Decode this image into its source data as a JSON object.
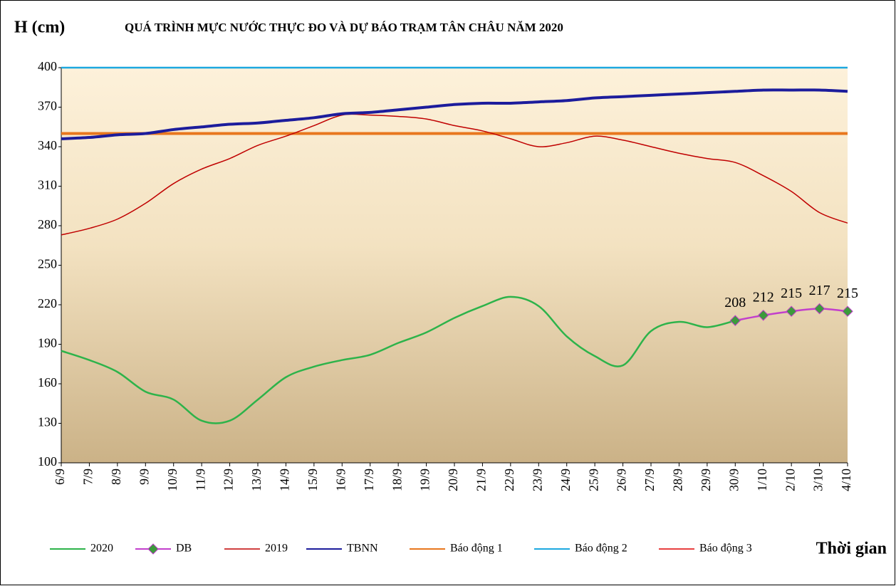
{
  "chart_data": {
    "type": "line",
    "title": "QUÁ TRÌNH MỰC NƯỚC THỰC ĐO VÀ DỰ BÁO TRẠM TÂN CHÂU NĂM 2020",
    "y_label": "H (cm)",
    "x_label": "Thời gian",
    "categories": [
      "6/9",
      "7/9",
      "8/9",
      "9/9",
      "10/9",
      "11/9",
      "12/9",
      "13/9",
      "14/9",
      "15/9",
      "16/9",
      "17/9",
      "18/9",
      "19/9",
      "20/9",
      "21/9",
      "22/9",
      "23/9",
      "24/9",
      "25/9",
      "26/9",
      "27/9",
      "28/9",
      "29/9",
      "30/9",
      "1/10",
      "2/10",
      "3/10",
      "4/10"
    ],
    "ylim": [
      100,
      400
    ],
    "yticks": [
      100,
      130,
      160,
      190,
      220,
      250,
      280,
      310,
      340,
      370,
      400
    ],
    "series": [
      {
        "name": "2020",
        "color": "#2db34a",
        "width": 2.5,
        "values": [
          185,
          178,
          169,
          154,
          148,
          132,
          132,
          148,
          165,
          173,
          178,
          182,
          191,
          199,
          210,
          219,
          226,
          219,
          196,
          181,
          174,
          200,
          207,
          203,
          208,
          null,
          null,
          null,
          null
        ]
      },
      {
        "name": "DB",
        "color": "#c23fcc",
        "marker_color": "#3c9a3c",
        "width": 2.5,
        "markers": true,
        "data_labels": true,
        "values": [
          null,
          null,
          null,
          null,
          null,
          null,
          null,
          null,
          null,
          null,
          null,
          null,
          null,
          null,
          null,
          null,
          null,
          null,
          null,
          null,
          null,
          null,
          null,
          null,
          208,
          212,
          215,
          217,
          215
        ]
      },
      {
        "name": "2019",
        "color": "#c00000",
        "width": 1.5,
        "values": [
          273,
          278,
          285,
          297,
          312,
          323,
          331,
          341,
          348,
          356,
          364,
          364,
          363,
          361,
          356,
          352,
          346,
          340,
          343,
          348,
          345,
          340,
          335,
          331,
          328,
          318,
          306,
          290,
          282
        ]
      },
      {
        "name": "TBNN",
        "color": "#1c1c9c",
        "width": 4,
        "values": [
          346,
          347,
          349,
          350,
          353,
          355,
          357,
          358,
          360,
          362,
          365,
          366,
          368,
          370,
          372,
          373,
          373,
          374,
          375,
          377,
          378,
          379,
          380,
          381,
          382,
          383,
          383,
          383,
          382
        ]
      },
      {
        "name": "Báo động 1",
        "color": "#e8771e",
        "width": 4,
        "values": [
          350,
          350,
          350,
          350,
          350,
          350,
          350,
          350,
          350,
          350,
          350,
          350,
          350,
          350,
          350,
          350,
          350,
          350,
          350,
          350,
          350,
          350,
          350,
          350,
          350,
          350,
          350,
          350,
          350
        ]
      },
      {
        "name": "Báo động 2",
        "color": "#1ca8e0",
        "width": 2.5,
        "values": [
          400,
          400,
          400,
          400,
          400,
          400,
          400,
          400,
          400,
          400,
          400,
          400,
          400,
          400,
          400,
          400,
          400,
          400,
          400,
          400,
          400,
          400,
          400,
          400,
          400,
          400,
          400,
          400,
          400
        ]
      },
      {
        "name": "Báo động 3",
        "color": "#e00000",
        "width": 1.5,
        "values": [
          null,
          null,
          null,
          null,
          null,
          null,
          null,
          null,
          null,
          null,
          null,
          null,
          null,
          null,
          null,
          null,
          null,
          null,
          null,
          null,
          null,
          null,
          null,
          null,
          null,
          null,
          null,
          null,
          null
        ]
      }
    ]
  }
}
